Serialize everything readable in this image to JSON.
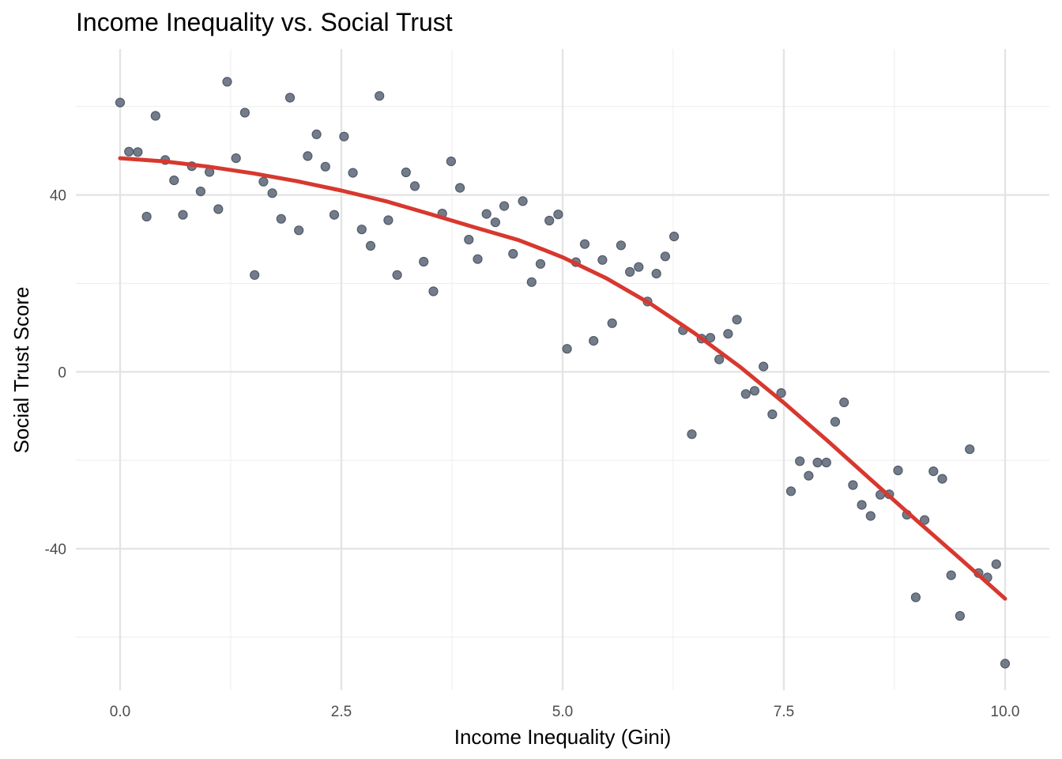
{
  "chart_data": {
    "type": "scatter",
    "title": "Income Inequality vs. Social Trust",
    "xlabel": "Income Inequality (Gini)",
    "ylabel": "Social Trust Score",
    "xlim": [
      -0.5,
      10.5
    ],
    "ylim": [
      -72,
      73
    ],
    "x_ticks": [
      0,
      2.5,
      5,
      7.5,
      10
    ],
    "x_tick_labels": [
      "0.0",
      "2.5",
      "5.0",
      "7.5",
      "10.0"
    ],
    "x_minor_ticks": [
      1.25,
      3.75,
      6.25,
      8.75
    ],
    "y_ticks": [
      -40,
      0,
      40
    ],
    "y_tick_labels": [
      "-40",
      "0",
      "40"
    ],
    "y_minor_ticks": [
      -60,
      -20,
      20,
      60
    ],
    "grid": true,
    "colors": {
      "points": "#6b7584",
      "fit_line": "#d7382f",
      "grid": "#e4e4e4"
    },
    "points": {
      "x": [
        0.0,
        0.1,
        0.2,
        0.3,
        0.4,
        0.51,
        0.61,
        0.71,
        0.81,
        0.91,
        1.01,
        1.11,
        1.21,
        1.31,
        1.41,
        1.52,
        1.62,
        1.72,
        1.82,
        1.92,
        2.02,
        2.12,
        2.22,
        2.32,
        2.42,
        2.53,
        2.63,
        2.73,
        2.83,
        2.93,
        3.03,
        3.13,
        3.23,
        3.33,
        3.43,
        3.54,
        3.64,
        3.74,
        3.84,
        3.94,
        4.04,
        4.14,
        4.24,
        4.34,
        4.44,
        4.55,
        4.65,
        4.75,
        4.85,
        4.95,
        5.05,
        5.15,
        5.25,
        5.35,
        5.45,
        5.56,
        5.66,
        5.76,
        5.86,
        5.96,
        6.06,
        6.16,
        6.26,
        6.36,
        6.46,
        6.57,
        6.67,
        6.77,
        6.87,
        6.97,
        7.07,
        7.17,
        7.27,
        7.37,
        7.47,
        7.58,
        7.68,
        7.78,
        7.88,
        7.98,
        8.08,
        8.18,
        8.28,
        8.38,
        8.48,
        8.59,
        8.69,
        8.79,
        8.89,
        8.99,
        9.09,
        9.19,
        9.29,
        9.39,
        9.49,
        9.6,
        9.7,
        9.8,
        9.9,
        10.0
      ],
      "y": [
        60.9,
        49.8,
        49.7,
        35.1,
        57.9,
        47.9,
        43.3,
        35.5,
        46.5,
        40.8,
        45.2,
        36.8,
        65.6,
        48.3,
        58.6,
        21.9,
        43.0,
        40.4,
        34.6,
        62.0,
        32.0,
        48.8,
        53.7,
        46.4,
        35.5,
        53.2,
        45.0,
        32.2,
        28.5,
        62.4,
        34.3,
        21.9,
        45.1,
        42.0,
        24.9,
        18.2,
        35.8,
        47.6,
        41.6,
        29.9,
        25.5,
        35.7,
        33.8,
        37.5,
        26.7,
        38.6,
        20.3,
        24.4,
        34.2,
        35.6,
        5.2,
        24.8,
        28.9,
        7.0,
        25.3,
        11.0,
        28.6,
        22.6,
        23.7,
        15.9,
        22.2,
        26.1,
        30.6,
        9.4,
        -14.1,
        7.5,
        7.7,
        2.8,
        8.6,
        11.8,
        -5.0,
        -4.3,
        1.2,
        -9.6,
        -4.8,
        -27.0,
        -20.2,
        -23.5,
        -20.5,
        -20.5,
        -11.3,
        -6.9,
        -25.6,
        -30.1,
        -32.6,
        -27.8,
        -27.7,
        -22.3,
        -32.3,
        -51.0,
        -33.5,
        -22.5,
        -24.2,
        -46.0,
        -55.2,
        -17.5,
        -45.5,
        -46.5,
        -43.5,
        -66.0
      ]
    },
    "fit_line": {
      "x": [
        0.0,
        0.5,
        1.0,
        1.5,
        2.0,
        2.5,
        3.0,
        3.5,
        4.0,
        4.5,
        4.8,
        5.0,
        5.5,
        6.0,
        6.5,
        7.0,
        7.5,
        8.0,
        8.5,
        9.0,
        9.5,
        10.0
      ],
      "y": [
        48.3,
        47.6,
        46.4,
        44.9,
        43.1,
        41.0,
        38.6,
        35.7,
        32.7,
        29.8,
        27.5,
        25.9,
        21.1,
        15.3,
        8.6,
        1.2,
        -7.0,
        -15.7,
        -24.7,
        -33.6,
        -42.4,
        -51.3
      ]
    }
  }
}
